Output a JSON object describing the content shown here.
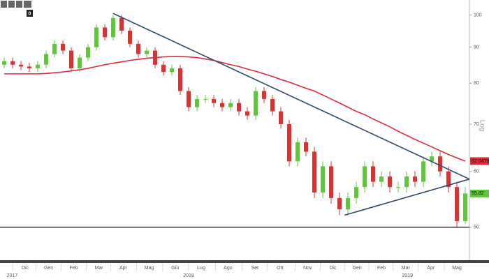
{
  "toolbar_label": "0",
  "chart_data": {
    "type": "candlestick",
    "yscale": "log",
    "axis_label": "Log",
    "ylim": [
      45,
      105
    ],
    "yticks": [
      50,
      60,
      70,
      80,
      90,
      100
    ],
    "xlim": [
      -0.5,
      55.5
    ],
    "xticks": [
      {
        "value": 2.5,
        "label": "Dic"
      },
      {
        "value": 5.3,
        "label": "Gen"
      },
      {
        "value": 8.3,
        "label": "Feb"
      },
      {
        "value": 11.3,
        "label": "Mar"
      },
      {
        "value": 14.2,
        "label": "Apr"
      },
      {
        "value": 17.3,
        "label": "Mag"
      },
      {
        "value": 20.4,
        "label": "Giu"
      },
      {
        "value": 23.5,
        "label": "Lug"
      },
      {
        "value": 26.7,
        "label": "Ago"
      },
      {
        "value": 29.9,
        "label": "Set"
      },
      {
        "value": 32.9,
        "label": "Ott"
      },
      {
        "value": 36.2,
        "label": "Nov"
      },
      {
        "value": 39.2,
        "label": "Dic"
      },
      {
        "value": 42.1,
        "label": "Gen"
      },
      {
        "value": 45,
        "label": "Feb"
      },
      {
        "value": 47.9,
        "label": "Mar"
      },
      {
        "value": 50.9,
        "label": "Apr"
      },
      {
        "value": 54,
        "label": "Mag"
      }
    ],
    "year_ticks": [
      {
        "value": 0.3,
        "label": "2017"
      },
      {
        "value": 22,
        "label": "2018"
      },
      {
        "value": 48.1,
        "label": "2019"
      }
    ],
    "up_color": "#5cc83a",
    "down_color": "#e03030",
    "open": [
      85,
      86,
      85,
      84.5,
      84,
      85,
      88,
      91,
      89,
      84,
      87,
      90,
      96,
      93,
      99,
      95,
      91,
      88,
      89,
      85,
      83,
      84,
      78,
      74,
      76,
      76,
      75,
      74,
      75,
      73,
      72,
      78,
      76,
      73,
      70,
      62,
      66,
      64,
      56,
      61,
      55,
      53,
      55,
      57,
      61,
      58,
      59,
      57,
      57,
      59,
      58,
      62,
      63,
      60,
      57,
      51
    ],
    "high": [
      87,
      87,
      86,
      85.5,
      86,
      89,
      92,
      92,
      90,
      88,
      91,
      97,
      97,
      100,
      100,
      96,
      92,
      90,
      90,
      86,
      85,
      85,
      79,
      77,
      77,
      77,
      76,
      76,
      76,
      74,
      79,
      79,
      77,
      74,
      71,
      67,
      67,
      65,
      62,
      62,
      56,
      56,
      58,
      62,
      62,
      60,
      60,
      58,
      60,
      60,
      63,
      64,
      64,
      61,
      58,
      57
    ],
    "low": [
      84,
      84,
      83.5,
      83,
      83,
      84,
      87,
      88,
      83,
      83,
      86,
      89,
      92,
      92,
      94,
      90,
      87,
      87,
      84,
      82,
      82,
      77,
      73,
      73,
      75,
      74,
      73,
      73,
      72,
      71,
      71,
      75,
      72,
      69,
      61,
      61,
      63,
      55,
      55,
      54,
      52,
      52,
      54,
      56,
      57,
      57,
      56,
      56,
      56,
      57,
      57,
      61,
      59,
      56,
      50,
      50.5
    ],
    "close": [
      86,
      85,
      84.5,
      84,
      85,
      88,
      91,
      89,
      84,
      87,
      90,
      96,
      93,
      99,
      95,
      91,
      88,
      89,
      85,
      83,
      84,
      78,
      74,
      76,
      76,
      75,
      74,
      75,
      73,
      72,
      78,
      76,
      73,
      70,
      62,
      66,
      64,
      56,
      61,
      55,
      53,
      55,
      57,
      61,
      58,
      59,
      57,
      57,
      59,
      58,
      62,
      63,
      60,
      57,
      51,
      55.82
    ],
    "moving_average": {
      "color": "#e02a3a",
      "values": [
        82.5,
        82.5,
        82.5,
        82.5,
        82.5,
        82.6,
        82.8,
        83,
        83.3,
        83.6,
        84,
        84.5,
        85,
        85.4,
        85.8,
        86.2,
        86.5,
        86.8,
        87,
        87.2,
        87.3,
        87.3,
        87.2,
        87,
        86.6,
        86.2,
        85.6,
        85,
        84.5,
        83.8,
        83.2,
        82.5,
        81.8,
        81,
        80.3,
        79.5,
        78.7,
        78,
        77,
        76,
        75,
        74,
        73,
        72.2,
        71.2,
        70.3,
        69.4,
        68.4,
        67.5,
        66.6,
        65.8,
        65,
        64.2,
        63.4,
        62.7,
        62.0479
      ]
    },
    "trendlines": [
      {
        "color": "#2c4a6e",
        "x": [
          13,
          55.5
        ],
        "y": [
          100.5,
          58.5
        ]
      },
      {
        "color": "#2c4a6e",
        "x": [
          40.6,
          55.5
        ],
        "y": [
          52,
          58.5
        ]
      }
    ],
    "hline": 50
  }
}
